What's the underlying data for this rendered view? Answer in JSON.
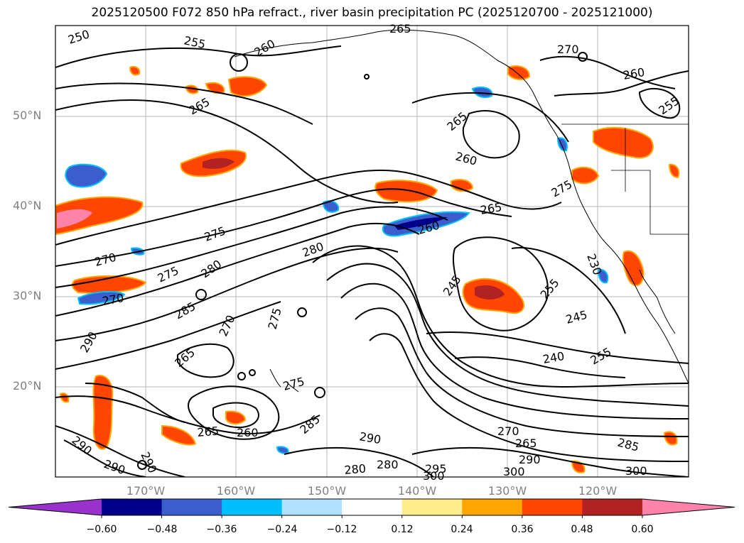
{
  "title": "2025120500 F072 850 hPa refract., river basin precipitation PC (2025120700 - 2025121000)",
  "lat_labels": [
    "50°N",
    "40°N",
    "30°N",
    "20°N"
  ],
  "lon_labels": [
    "170°W",
    "160°W",
    "150°W",
    "140°W",
    "130°W",
    "120°W"
  ],
  "colorbar": {
    "ticks": [
      "−0.60",
      "−0.48",
      "−0.36",
      "−0.24",
      "−0.12",
      "0.12",
      "0.24",
      "0.36",
      "0.48",
      "0.60"
    ],
    "colors": [
      "#9932cc",
      "#00008b",
      "#3a5fcd",
      "#00bfff",
      "#b0e2ff",
      "#ffffff",
      "#ffec8b",
      "#ffa500",
      "#ff4500",
      "#b22222",
      "#ff82ab"
    ]
  },
  "contour_labels": [
    {
      "text": "250"
    },
    {
      "text": "255"
    },
    {
      "text": "265"
    },
    {
      "text": "260"
    },
    {
      "text": "265"
    },
    {
      "text": "270"
    },
    {
      "text": "260"
    },
    {
      "text": "255"
    },
    {
      "text": "265"
    },
    {
      "text": "260"
    },
    {
      "text": "265"
    },
    {
      "text": "260"
    },
    {
      "text": "275"
    },
    {
      "text": "280"
    },
    {
      "text": "270"
    },
    {
      "text": "275"
    },
    {
      "text": "280"
    },
    {
      "text": "270"
    },
    {
      "text": "285"
    },
    {
      "text": "290"
    },
    {
      "text": "270"
    },
    {
      "text": "275"
    },
    {
      "text": "245"
    },
    {
      "text": "255"
    },
    {
      "text": "245"
    },
    {
      "text": "240"
    },
    {
      "text": "255"
    },
    {
      "text": "265"
    },
    {
      "text": "275"
    },
    {
      "text": "265"
    },
    {
      "text": "260"
    },
    {
      "text": "285"
    },
    {
      "text": "290"
    },
    {
      "text": "270"
    },
    {
      "text": "265"
    },
    {
      "text": "290"
    },
    {
      "text": "285"
    },
    {
      "text": "290"
    },
    {
      "text": "290"
    },
    {
      "text": "290"
    },
    {
      "text": "280"
    },
    {
      "text": "280"
    },
    {
      "text": "295"
    },
    {
      "text": "300"
    },
    {
      "text": "300"
    },
    {
      "text": "300"
    },
    {
      "text": "275"
    },
    {
      "text": "230"
    }
  ]
}
